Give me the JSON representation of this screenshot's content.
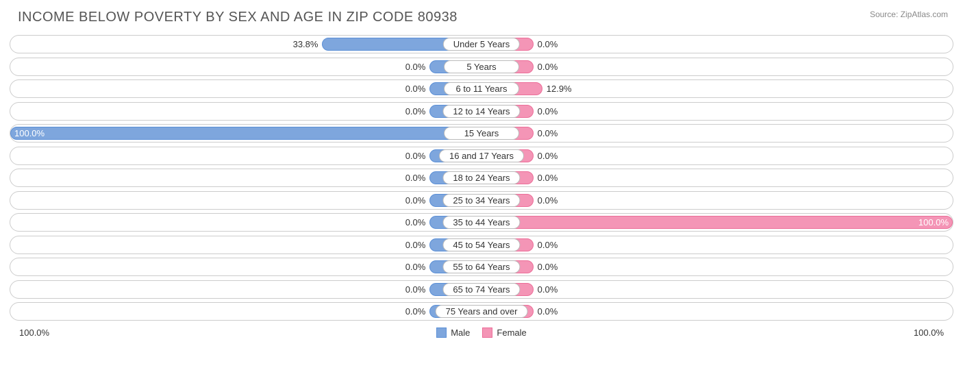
{
  "title": "INCOME BELOW POVERTY BY SEX AND AGE IN ZIP CODE 80938",
  "source": "Source: ZipAtlas.com",
  "chart": {
    "type": "diverging-bar",
    "male_color": "#7ea6dd",
    "male_border": "#5b8fd6",
    "female_color": "#f495b6",
    "female_border": "#ec6d98",
    "row_border": "#cccccc",
    "background": "#ffffff",
    "text_color": "#333333",
    "min_bar_pct": 11,
    "rows": [
      {
        "label": "Under 5 Years",
        "male": 33.8,
        "female": 0.0
      },
      {
        "label": "5 Years",
        "male": 0.0,
        "female": 0.0
      },
      {
        "label": "6 to 11 Years",
        "male": 0.0,
        "female": 12.9
      },
      {
        "label": "12 to 14 Years",
        "male": 0.0,
        "female": 0.0
      },
      {
        "label": "15 Years",
        "male": 100.0,
        "female": 0.0
      },
      {
        "label": "16 and 17 Years",
        "male": 0.0,
        "female": 0.0
      },
      {
        "label": "18 to 24 Years",
        "male": 0.0,
        "female": 0.0
      },
      {
        "label": "25 to 34 Years",
        "male": 0.0,
        "female": 0.0
      },
      {
        "label": "35 to 44 Years",
        "male": 0.0,
        "female": 100.0
      },
      {
        "label": "45 to 54 Years",
        "male": 0.0,
        "female": 0.0
      },
      {
        "label": "55 to 64 Years",
        "male": 0.0,
        "female": 0.0
      },
      {
        "label": "65 to 74 Years",
        "male": 0.0,
        "female": 0.0
      },
      {
        "label": "75 Years and over",
        "male": 0.0,
        "female": 0.0
      }
    ],
    "axis": {
      "left": "100.0%",
      "right": "100.0%"
    },
    "legend": {
      "male": "Male",
      "female": "Female"
    }
  }
}
